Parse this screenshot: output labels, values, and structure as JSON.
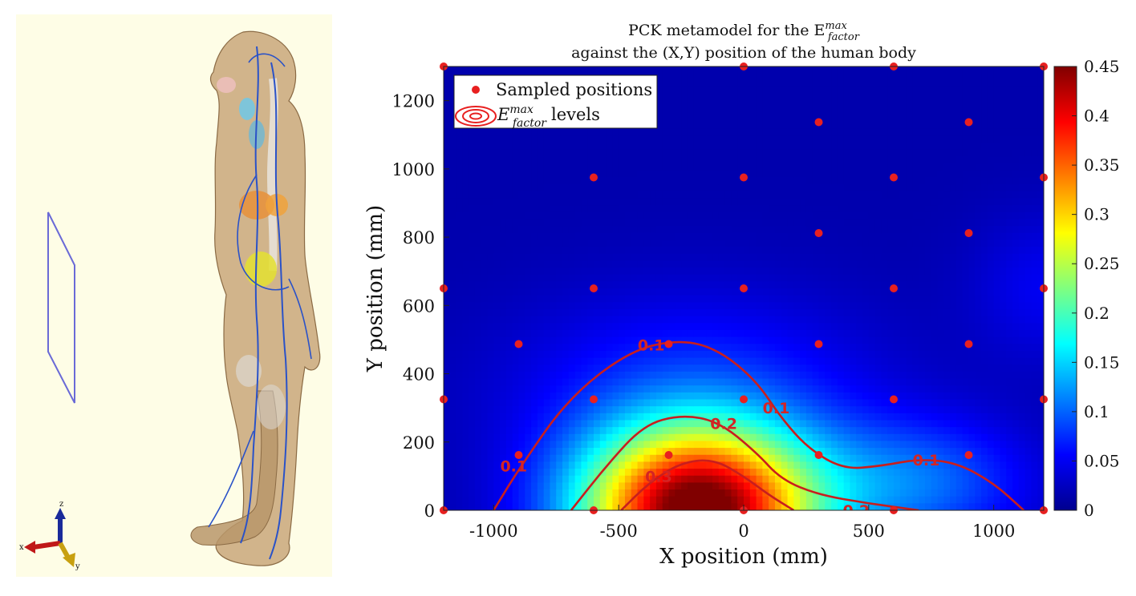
{
  "colors": {
    "panel_bg": "#fefde6",
    "frame": "#6a6ad6",
    "skin": "#c9a77a",
    "vessel": "#2a52c8",
    "marker": "#e82020",
    "contour": "#c81e1e"
  },
  "left_panel": {
    "icon": "human-body-model-icon",
    "axis_triad_labels": {
      "z": "z",
      "x": "x",
      "y": "y"
    }
  },
  "chart_data": {
    "type": "heatmap",
    "title_lines": [
      "PCK metamodel for the E^{max}_{factor}",
      "against the (X,Y) position of the human body"
    ],
    "title_parts": {
      "line1_prefix": "PCK metamodel for the E",
      "sup": "max",
      "sub": "factor",
      "line2": "against the (X,Y) position of the human body"
    },
    "xlabel": "X position (mm)",
    "ylabel": "Y position (mm)",
    "xlim": [
      -1200,
      1200
    ],
    "ylim": [
      0,
      1300
    ],
    "xticks": [
      -1000,
      -500,
      0,
      500,
      1000
    ],
    "xtick_labels": [
      "-1000",
      "-500",
      "0",
      "500",
      "1000"
    ],
    "yticks": [
      0,
      200,
      400,
      600,
      800,
      1000,
      1200
    ],
    "ytick_labels": [
      "0",
      "200",
      "400",
      "600",
      "800",
      "1000",
      "1200"
    ],
    "colorbar": {
      "range": [
        0,
        0.45
      ],
      "ticks": [
        0,
        0.05,
        0.1,
        0.15,
        0.2,
        0.25,
        0.3,
        0.35,
        0.4,
        0.45
      ],
      "tick_labels": [
        "0",
        "0.05",
        "0.1",
        "0.15",
        "0.2",
        "0.25",
        "0.3",
        "0.35",
        "0.4",
        "0.45"
      ],
      "colormap": "jet"
    },
    "legend": {
      "position": "top-left",
      "sampled": "Sampled positions",
      "levels_E": "E",
      "levels_sup": "max",
      "levels_sub": "factor",
      "levels_suffix": "levels"
    },
    "sampled_positions": [
      [
        -1200,
        0
      ],
      [
        -600,
        0
      ],
      [
        0,
        0
      ],
      [
        600,
        0
      ],
      [
        1200,
        0
      ],
      [
        -900,
        162
      ],
      [
        -300,
        162
      ],
      [
        300,
        162
      ],
      [
        900,
        162
      ],
      [
        -1200,
        325
      ],
      [
        -600,
        325
      ],
      [
        0,
        325
      ],
      [
        600,
        325
      ],
      [
        1200,
        325
      ],
      [
        -900,
        487
      ],
      [
        -300,
        487
      ],
      [
        300,
        487
      ],
      [
        900,
        487
      ],
      [
        -1200,
        650
      ],
      [
        -600,
        650
      ],
      [
        0,
        650
      ],
      [
        600,
        650
      ],
      [
        1200,
        650
      ],
      [
        300,
        812
      ],
      [
        900,
        812
      ],
      [
        -600,
        975
      ],
      [
        0,
        975
      ],
      [
        600,
        975
      ],
      [
        1200,
        975
      ],
      [
        300,
        1137
      ],
      [
        900,
        1137
      ],
      [
        -1200,
        1300
      ],
      [
        0,
        1300
      ],
      [
        600,
        1300
      ],
      [
        1200,
        1300
      ]
    ],
    "contours": [
      {
        "level": 0.1,
        "label": "0.1",
        "points": [
          [
            -1000,
            0
          ],
          [
            -900,
            120
          ],
          [
            -700,
            330
          ],
          [
            -450,
            470
          ],
          [
            -250,
            500
          ],
          [
            -100,
            470
          ],
          [
            50,
            380
          ],
          [
            150,
            270
          ],
          [
            260,
            180
          ],
          [
            400,
            120
          ],
          [
            550,
            130
          ],
          [
            700,
            150
          ],
          [
            850,
            140
          ],
          [
            1000,
            80
          ],
          [
            1120,
            0
          ]
        ],
        "label_positions": [
          [
            -920,
            130
          ],
          [
            -370,
            485
          ],
          [
            130,
            300
          ],
          [
            730,
            148
          ]
        ]
      },
      {
        "level": 0.2,
        "label": "0.2",
        "points": [
          [
            -690,
            0
          ],
          [
            -550,
            130
          ],
          [
            -400,
            250
          ],
          [
            -250,
            280
          ],
          [
            -100,
            260
          ],
          [
            50,
            170
          ],
          [
            150,
            90
          ],
          [
            300,
            45
          ],
          [
            500,
            20
          ],
          [
            700,
            0
          ]
        ],
        "label_positions": [
          [
            -80,
            255
          ],
          [
            450,
            0
          ]
        ]
      },
      {
        "level": 0.3,
        "label": "0.3",
        "points": [
          [
            -490,
            0
          ],
          [
            -380,
            80
          ],
          [
            -250,
            140
          ],
          [
            -120,
            150
          ],
          [
            0,
            100
          ],
          [
            100,
            45
          ],
          [
            200,
            0
          ]
        ],
        "label_positions": [
          [
            -340,
            100
          ]
        ]
      }
    ],
    "field_model": {
      "description": "smooth response surface",
      "peak_value": 0.45,
      "peak_x": -180,
      "peak_y": 0
    }
  }
}
